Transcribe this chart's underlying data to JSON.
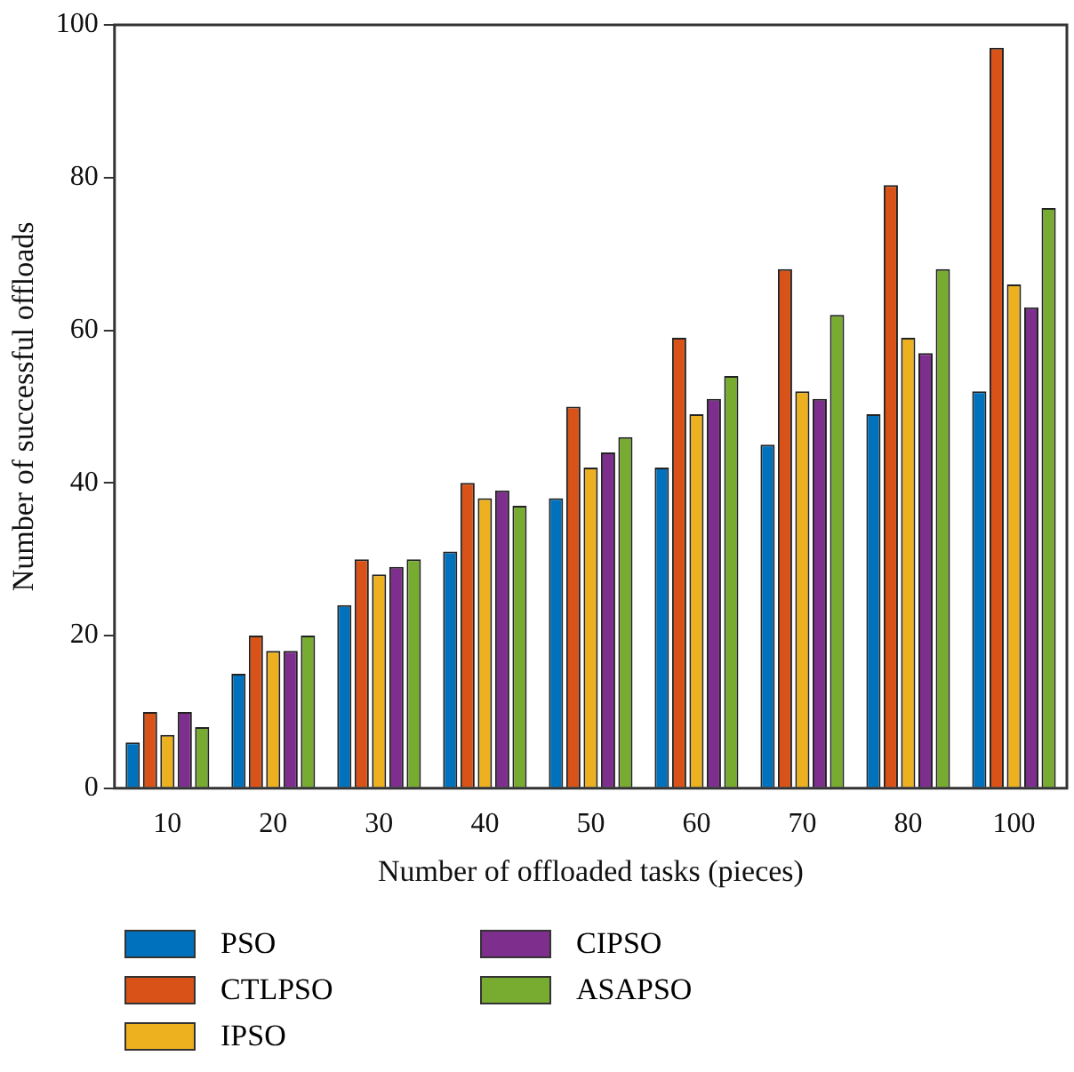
{
  "chart_data": {
    "type": "bar",
    "xlabel": "Number of offloaded tasks (pieces)",
    "ylabel": "Number of successful offloads",
    "categories": [
      "10",
      "20",
      "30",
      "40",
      "50",
      "60",
      "70",
      "80",
      "100"
    ],
    "series": [
      {
        "name": "PSO",
        "color": "#0072bd",
        "values": [
          6,
          15,
          24,
          31,
          38,
          42,
          45,
          49,
          52
        ]
      },
      {
        "name": "CTLPSO",
        "color": "#d95319",
        "values": [
          10,
          20,
          30,
          40,
          50,
          59,
          68,
          79,
          97
        ]
      },
      {
        "name": "IPSO",
        "color": "#edb120",
        "values": [
          7,
          18,
          28,
          38,
          42,
          49,
          52,
          59,
          66
        ]
      },
      {
        "name": "CIPSO",
        "color": "#7e2f8e",
        "values": [
          10,
          18,
          29,
          39,
          44,
          51,
          51,
          57,
          63
        ]
      },
      {
        "name": "ASAPSO",
        "color": "#77ac30",
        "values": [
          8,
          20,
          30,
          37,
          46,
          54,
          62,
          68,
          76
        ]
      }
    ],
    "ylim": [
      0,
      100
    ],
    "yticks": [
      0,
      20,
      40,
      60,
      80,
      100
    ],
    "grid": false,
    "legend": "bottom"
  }
}
